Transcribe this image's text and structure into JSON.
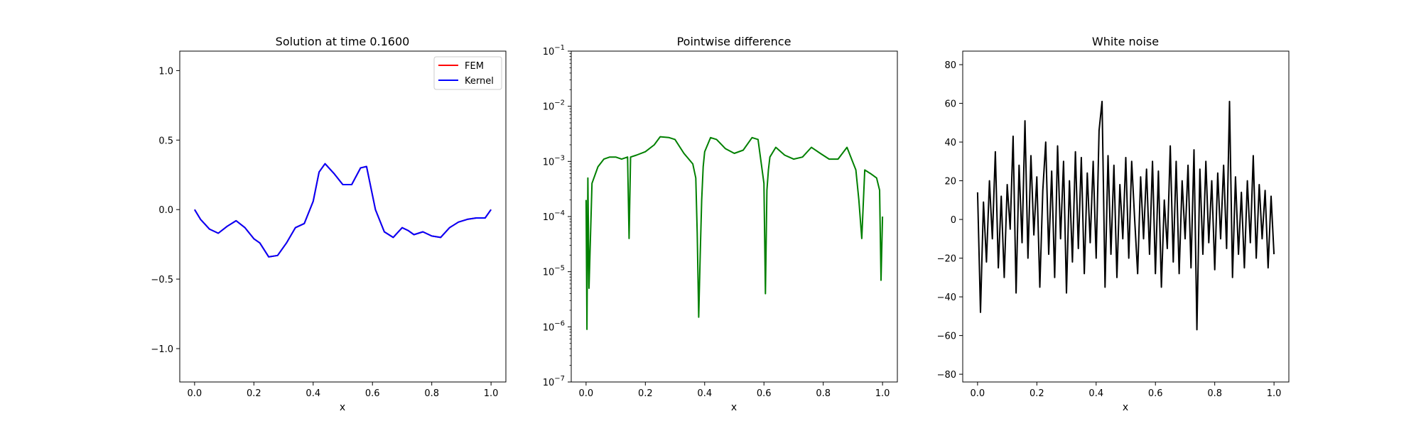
{
  "chart_data": [
    {
      "type": "line",
      "title": "Solution at time 0.1600",
      "xlabel": "x",
      "ylabel": "",
      "xlim": [
        -0.05,
        1.05
      ],
      "ylim": [
        -1.24,
        1.14
      ],
      "xticks": [
        "0.0",
        "0.2",
        "0.4",
        "0.6",
        "0.8",
        "1.0"
      ],
      "yticks": [
        "−1.0",
        "−0.5",
        "0.0",
        "0.5",
        "1.0"
      ],
      "grid": false,
      "legend": "upper right",
      "series": [
        {
          "name": "FEM",
          "color": "#ff0000",
          "x": [
            0.0,
            0.02,
            0.05,
            0.08,
            0.11,
            0.14,
            0.17,
            0.2,
            0.22,
            0.25,
            0.28,
            0.31,
            0.34,
            0.37,
            0.4,
            0.42,
            0.44,
            0.47,
            0.5,
            0.53,
            0.56,
            0.58,
            0.61,
            0.64,
            0.67,
            0.7,
            0.72,
            0.74,
            0.77,
            0.8,
            0.83,
            0.86,
            0.89,
            0.92,
            0.95,
            0.98,
            1.0
          ],
          "y": [
            0.0,
            -0.07,
            -0.14,
            -0.17,
            -0.12,
            -0.08,
            -0.13,
            -0.21,
            -0.24,
            -0.34,
            -0.33,
            -0.24,
            -0.13,
            -0.1,
            0.06,
            0.27,
            0.33,
            0.26,
            0.18,
            0.18,
            0.3,
            0.31,
            0.0,
            -0.16,
            -0.2,
            -0.13,
            -0.15,
            -0.18,
            -0.16,
            -0.19,
            -0.2,
            -0.13,
            -0.09,
            -0.07,
            -0.06,
            -0.06,
            0.0
          ]
        },
        {
          "name": "Kernel",
          "color": "#0000ff",
          "x": [
            0.0,
            0.02,
            0.05,
            0.08,
            0.11,
            0.14,
            0.17,
            0.2,
            0.22,
            0.25,
            0.28,
            0.31,
            0.34,
            0.37,
            0.4,
            0.42,
            0.44,
            0.47,
            0.5,
            0.53,
            0.56,
            0.58,
            0.61,
            0.64,
            0.67,
            0.7,
            0.72,
            0.74,
            0.77,
            0.8,
            0.83,
            0.86,
            0.89,
            0.92,
            0.95,
            0.98,
            1.0
          ],
          "y": [
            0.0,
            -0.07,
            -0.14,
            -0.17,
            -0.12,
            -0.08,
            -0.13,
            -0.21,
            -0.24,
            -0.34,
            -0.33,
            -0.24,
            -0.13,
            -0.1,
            0.06,
            0.27,
            0.33,
            0.26,
            0.18,
            0.18,
            0.3,
            0.31,
            0.0,
            -0.16,
            -0.2,
            -0.13,
            -0.15,
            -0.18,
            -0.16,
            -0.19,
            -0.2,
            -0.13,
            -0.09,
            -0.07,
            -0.06,
            -0.06,
            0.0
          ]
        }
      ]
    },
    {
      "type": "line",
      "title": "Pointwise difference",
      "xlabel": "x",
      "ylabel": "",
      "yscale": "log",
      "xlim": [
        -0.05,
        1.05
      ],
      "ylim": [
        1e-07,
        0.1
      ],
      "xticks": [
        "0.0",
        "0.2",
        "0.4",
        "0.6",
        "0.8",
        "1.0"
      ],
      "yticks": [
        {
          "base": "10",
          "exp": "−1"
        },
        {
          "base": "10",
          "exp": "−2"
        },
        {
          "base": "10",
          "exp": "−3"
        },
        {
          "base": "10",
          "exp": "−4"
        },
        {
          "base": "10",
          "exp": "−5"
        },
        {
          "base": "10",
          "exp": "−6"
        },
        {
          "base": "10",
          "exp": "−7"
        }
      ],
      "grid": false,
      "series": [
        {
          "color": "#008000",
          "x": [
            0.0,
            0.003,
            0.006,
            0.01,
            0.02,
            0.04,
            0.06,
            0.08,
            0.1,
            0.12,
            0.14,
            0.145,
            0.15,
            0.17,
            0.2,
            0.23,
            0.25,
            0.28,
            0.3,
            0.33,
            0.36,
            0.37,
            0.375,
            0.38,
            0.385,
            0.39,
            0.395,
            0.4,
            0.42,
            0.44,
            0.47,
            0.5,
            0.53,
            0.56,
            0.58,
            0.6,
            0.605,
            0.61,
            0.615,
            0.62,
            0.64,
            0.67,
            0.7,
            0.73,
            0.76,
            0.79,
            0.82,
            0.85,
            0.88,
            0.91,
            0.92,
            0.93,
            0.94,
            0.96,
            0.98,
            0.99,
            0.995,
            1.0
          ],
          "y": [
            0.0002,
            9e-07,
            0.0005,
            5e-06,
            0.0004,
            0.0008,
            0.0011,
            0.0012,
            0.0012,
            0.0011,
            0.0012,
            4e-05,
            0.0012,
            0.0013,
            0.0015,
            0.002,
            0.0028,
            0.0027,
            0.0025,
            0.0014,
            0.0009,
            0.0005,
            5e-05,
            1.5e-06,
            2e-05,
            0.0002,
            0.0008,
            0.0015,
            0.0027,
            0.0025,
            0.0017,
            0.0014,
            0.0016,
            0.0027,
            0.0025,
            0.0004,
            4e-06,
            0.0003,
            0.0007,
            0.0012,
            0.0018,
            0.0013,
            0.0011,
            0.0012,
            0.0018,
            0.0014,
            0.0011,
            0.0011,
            0.0018,
            0.0007,
            0.0002,
            4e-05,
            0.0007,
            0.0006,
            0.0005,
            0.0003,
            7e-06,
            0.0001
          ]
        }
      ]
    },
    {
      "type": "line",
      "title": "White noise",
      "xlabel": "x",
      "ylabel": "",
      "xlim": [
        -0.05,
        1.05
      ],
      "ylim": [
        -84,
        87
      ],
      "xticks": [
        "0.0",
        "0.2",
        "0.4",
        "0.6",
        "0.8",
        "1.0"
      ],
      "yticks": [
        "−80",
        "−60",
        "−40",
        "−20",
        "0",
        "20",
        "40",
        "60",
        "80"
      ],
      "grid": false,
      "series": [
        {
          "color": "#000000",
          "x": [
            0.0,
            0.01,
            0.02,
            0.03,
            0.04,
            0.05,
            0.06,
            0.07,
            0.08,
            0.09,
            0.1,
            0.11,
            0.12,
            0.13,
            0.14,
            0.15,
            0.16,
            0.17,
            0.18,
            0.19,
            0.2,
            0.21,
            0.22,
            0.23,
            0.24,
            0.25,
            0.26,
            0.27,
            0.28,
            0.29,
            0.3,
            0.31,
            0.32,
            0.33,
            0.34,
            0.35,
            0.36,
            0.37,
            0.38,
            0.39,
            0.4,
            0.41,
            0.42,
            0.43,
            0.44,
            0.45,
            0.46,
            0.47,
            0.48,
            0.49,
            0.5,
            0.51,
            0.52,
            0.53,
            0.54,
            0.55,
            0.56,
            0.57,
            0.58,
            0.59,
            0.6,
            0.61,
            0.62,
            0.63,
            0.64,
            0.65,
            0.66,
            0.67,
            0.68,
            0.69,
            0.7,
            0.71,
            0.72,
            0.73,
            0.74,
            0.75,
            0.76,
            0.77,
            0.78,
            0.79,
            0.8,
            0.81,
            0.82,
            0.83,
            0.84,
            0.85,
            0.86,
            0.87,
            0.88,
            0.89,
            0.9,
            0.91,
            0.92,
            0.93,
            0.94,
            0.95,
            0.96,
            0.97,
            0.98,
            0.99,
            1.0
          ],
          "y": [
            14,
            -48,
            9,
            -22,
            20,
            -10,
            35,
            -25,
            12,
            -30,
            18,
            -5,
            43,
            -38,
            28,
            -12,
            51,
            -20,
            33,
            -8,
            22,
            -35,
            15,
            40,
            -18,
            25,
            -30,
            38,
            -10,
            30,
            -38,
            20,
            -22,
            35,
            -15,
            32,
            -28,
            24,
            -12,
            30,
            -20,
            46,
            61,
            -35,
            33,
            -18,
            28,
            -30,
            18,
            -10,
            32,
            -20,
            30,
            0,
            -28,
            22,
            -10,
            26,
            -18,
            30,
            -28,
            25,
            -35,
            10,
            -15,
            38,
            -22,
            30,
            -28,
            20,
            -10,
            28,
            -25,
            36,
            -57,
            26,
            -18,
            30,
            -12,
            20,
            -26,
            24,
            -10,
            28,
            -15,
            61,
            -30,
            22,
            -18,
            14,
            -25,
            20,
            -12,
            33,
            -20,
            18,
            -10,
            15,
            -25,
            12,
            -18
          ]
        }
      ]
    }
  ]
}
